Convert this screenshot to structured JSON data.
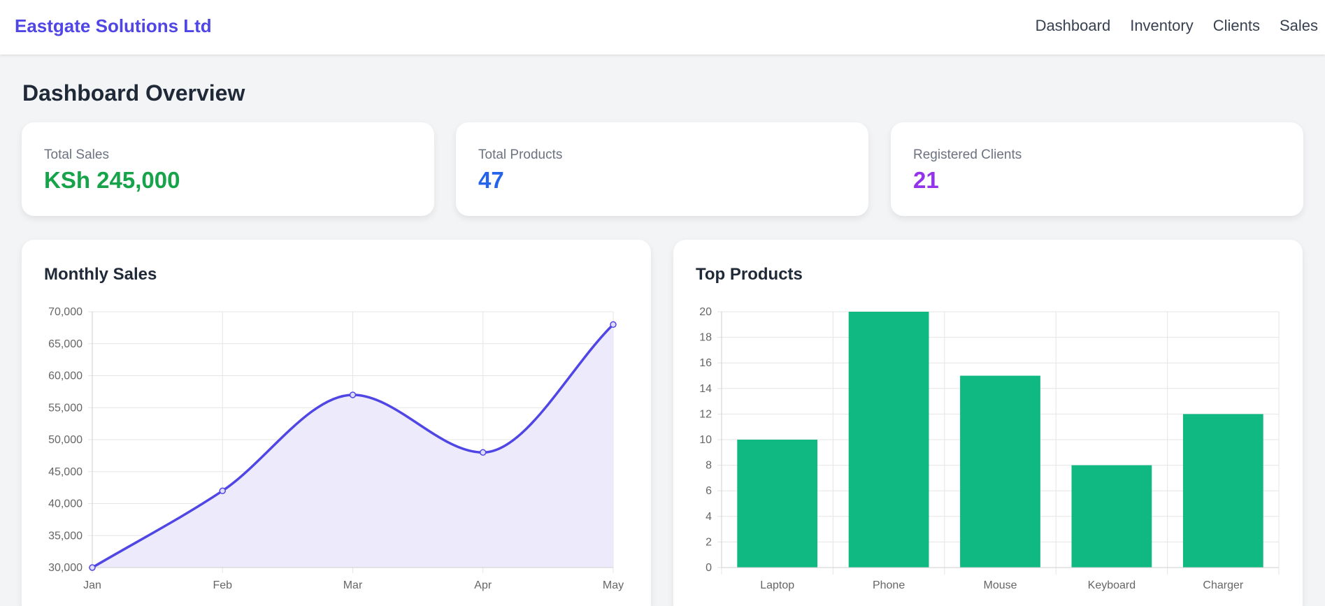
{
  "navbar": {
    "brand": "Eastgate Solutions Ltd",
    "links": [
      "Dashboard",
      "Inventory",
      "Clients",
      "Sales"
    ]
  },
  "page": {
    "title": "Dashboard Overview"
  },
  "stats": [
    {
      "label": "Total Sales",
      "value": "KSh 245,000",
      "color": "#16a34a"
    },
    {
      "label": "Total Products",
      "value": "47",
      "color": "#2563eb"
    },
    {
      "label": "Registered Clients",
      "value": "21",
      "color": "#9333ea"
    }
  ],
  "colors": {
    "brand": "#4f46e5",
    "line": "#4f46e5",
    "area_fill": "#ebe9fb",
    "bar": "#10b981",
    "grid": "#e5e5e5"
  },
  "chart_data": [
    {
      "type": "line",
      "title": "Monthly Sales",
      "categories": [
        "Jan",
        "Feb",
        "Mar",
        "Apr",
        "May"
      ],
      "values": [
        30000,
        42000,
        57000,
        48000,
        68000
      ],
      "ylim": [
        30000,
        70000
      ],
      "yticks": [
        30000,
        35000,
        40000,
        45000,
        50000,
        55000,
        60000,
        65000,
        70000
      ],
      "ytick_labels": [
        "30,000",
        "35,000",
        "40,000",
        "45,000",
        "50,000",
        "55,000",
        "60,000",
        "65,000",
        "70,000"
      ],
      "fill": true,
      "grid": true,
      "xlabel": "",
      "ylabel": ""
    },
    {
      "type": "bar",
      "title": "Top Products",
      "categories": [
        "Laptop",
        "Phone",
        "Mouse",
        "Keyboard",
        "Charger"
      ],
      "values": [
        10,
        20,
        15,
        8,
        12
      ],
      "ylim": [
        0,
        20
      ],
      "yticks": [
        0,
        2,
        4,
        6,
        8,
        10,
        12,
        14,
        16,
        18,
        20
      ],
      "ytick_labels": [
        "0",
        "2",
        "4",
        "6",
        "8",
        "10",
        "12",
        "14",
        "16",
        "18",
        "20"
      ],
      "grid": true,
      "xlabel": "",
      "ylabel": ""
    }
  ]
}
